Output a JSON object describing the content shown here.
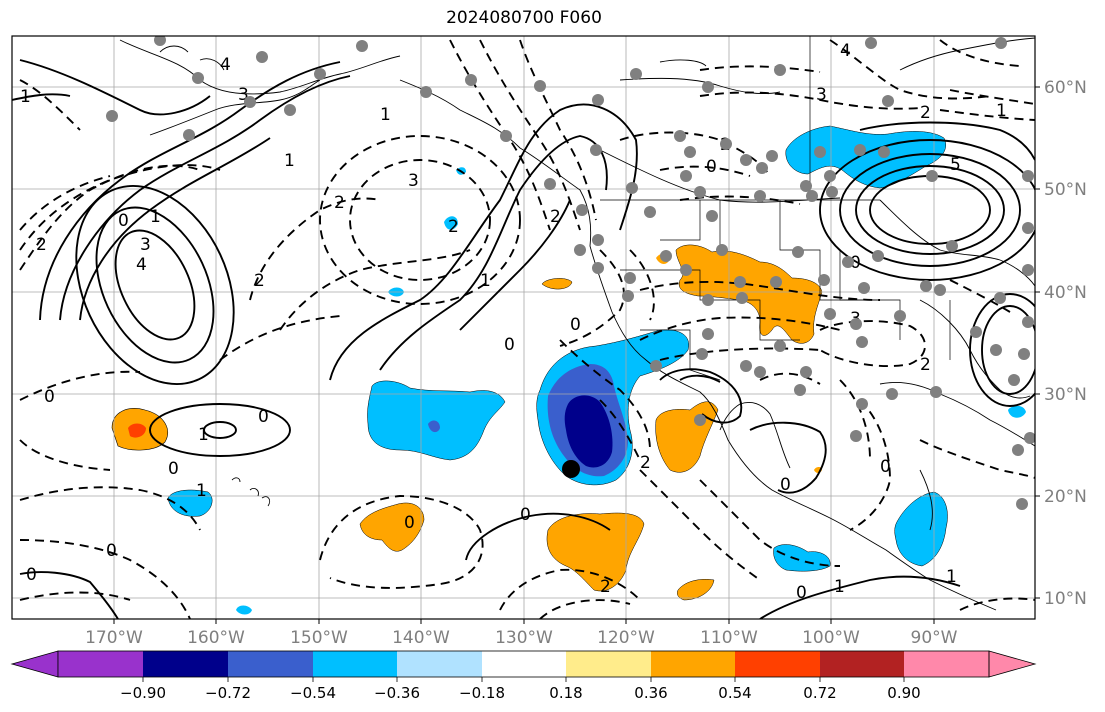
{
  "title": "2024080700 F060",
  "colors": {
    "map_background": "#ffffff",
    "grid": "#a8a8a8",
    "coast": "#000000",
    "station_dot": "#808080",
    "marker": "#000000"
  },
  "lon_labels": [
    "170°W",
    "160°W",
    "150°W",
    "140°W",
    "130°W",
    "120°W",
    "110°W",
    "100°W",
    "90°W"
  ],
  "lat_labels": [
    "60°N",
    "50°N",
    "40°N",
    "30°N",
    "20°N",
    "10°N"
  ],
  "colorbar": {
    "ticks": [
      "−0.90",
      "−0.72",
      "−0.54",
      "−0.36",
      "−0.18",
      "0.18",
      "0.36",
      "0.54",
      "0.72",
      "0.90"
    ],
    "colors": [
      "#9932cc",
      "#00008b",
      "#3a5fcd",
      "#00bfff",
      "#b0e2ff",
      "#ffffff",
      "#ffec8b",
      "#ffa500",
      "#ff4000",
      "#b22222",
      "#ff88aa"
    ]
  },
  "contour_labels": {
    "alaska_4": "4",
    "alaska_3": "3",
    "west_1a": "1",
    "west_1b": "1",
    "w_2": "2",
    "w_0": "0",
    "w_4": "4",
    "w_3": "3",
    "w_2b": "2",
    "w_1": "1",
    "npac_2": "2",
    "npac_3": "3",
    "npac_2b": "2",
    "npac_1": "1",
    "npac_0": "0",
    "coast_2": "2",
    "coast_1": "1",
    "coast_0": "0",
    "canada_3": "3",
    "canada_2": "2",
    "canada_0": "0",
    "canada_4": "4",
    "ne_5": "5",
    "ne_2": "2",
    "ne_1": "1",
    "us_0": "0",
    "us_3": "3",
    "us_2": "2",
    "hi_0a": "0",
    "hi_0b": "0",
    "hi_1": "1",
    "hi_1b": "1",
    "hi_0c": "0",
    "hi_0d": "0",
    "sub_0a": "0",
    "sub_0b": "0",
    "sub_0c": "0",
    "sub_2": "2",
    "sub_2b": "2",
    "mx_0a": "0",
    "mx_0b": "0",
    "mx_1": "1",
    "mx_1b": "1",
    "mx_0c": "0"
  }
}
